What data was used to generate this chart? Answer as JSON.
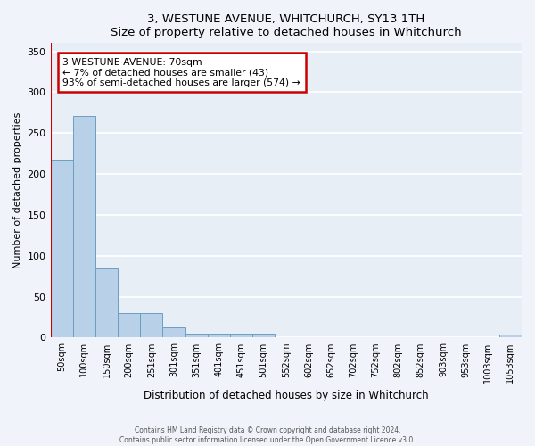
{
  "title": "3, WESTUNE AVENUE, WHITCHURCH, SY13 1TH",
  "subtitle": "Size of property relative to detached houses in Whitchurch",
  "xlabel": "Distribution of detached houses by size in Whitchurch",
  "ylabel": "Number of detached properties",
  "categories": [
    "50sqm",
    "100sqm",
    "150sqm",
    "200sqm",
    "251sqm",
    "301sqm",
    "351sqm",
    "401sqm",
    "451sqm",
    "501sqm",
    "552sqm",
    "602sqm",
    "652sqm",
    "702sqm",
    "752sqm",
    "802sqm",
    "852sqm",
    "903sqm",
    "953sqm",
    "1003sqm",
    "1053sqm"
  ],
  "values": [
    218,
    271,
    84,
    30,
    30,
    12,
    5,
    5,
    5,
    5,
    0,
    0,
    0,
    0,
    0,
    0,
    0,
    0,
    0,
    0,
    4
  ],
  "bar_color": "#b8d0e8",
  "bar_edge_color": "#6a9fc0",
  "bg_color": "#e8eef6",
  "grid_color": "#ffffff",
  "annotation_text_line1": "3 WESTUNE AVENUE: 70sqm",
  "annotation_text_line2": "← 7% of detached houses are smaller (43)",
  "annotation_text_line3": "93% of semi-detached houses are larger (574) →",
  "annotation_box_color": "#ffffff",
  "annotation_border_color": "#cc0000",
  "ylim": [
    0,
    360
  ],
  "yticks": [
    0,
    50,
    100,
    150,
    200,
    250,
    300,
    350
  ],
  "footer_line1": "Contains HM Land Registry data © Crown copyright and database right 2024.",
  "footer_line2": "Contains public sector information licensed under the Open Government Licence v3.0.",
  "fig_facecolor": "#f0f4fa"
}
